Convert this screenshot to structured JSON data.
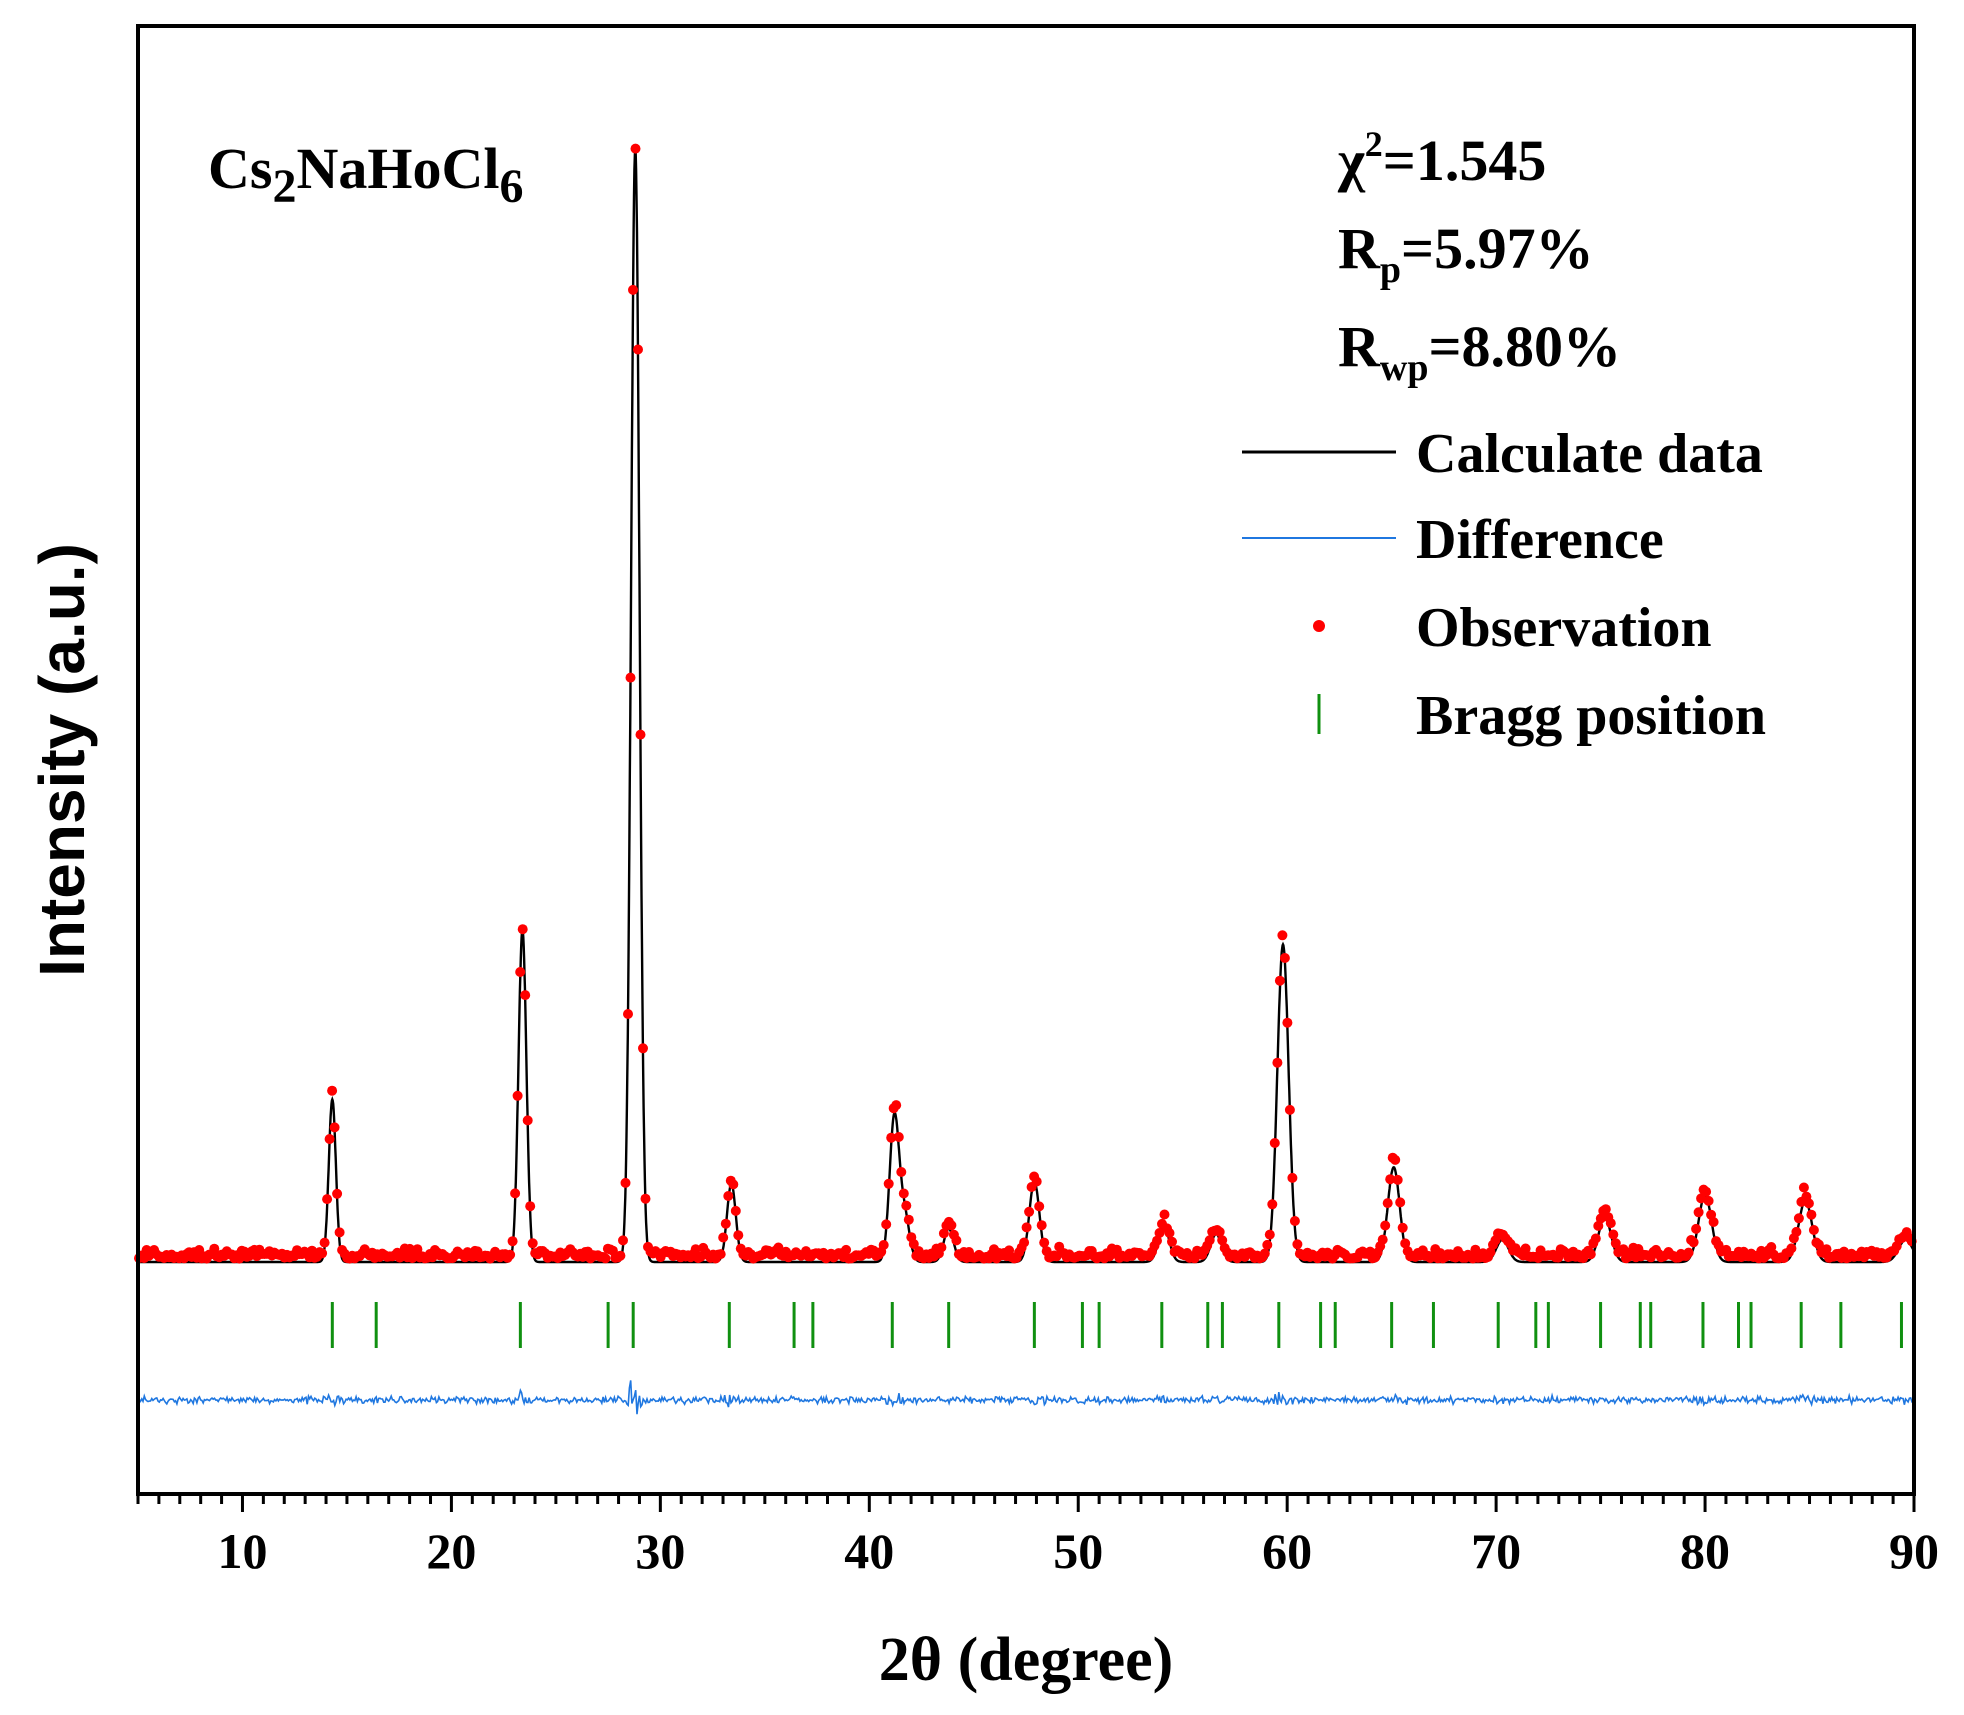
{
  "chart_data": {
    "type": "line",
    "title": "",
    "xlabel": "2θ (degree)",
    "ylabel": "Intensity (a.u.)",
    "xlim": [
      5,
      90
    ],
    "xticks": [
      10,
      20,
      30,
      40,
      50,
      60,
      70,
      80,
      90
    ],
    "x_minor_tick_step": 1,
    "y_ticks_shown": false,
    "grid": false,
    "compound": {
      "base1": "Cs",
      "sub1": "2",
      "base2": "NaHoCl",
      "sub2": "6"
    },
    "statistics": [
      {
        "base": "χ",
        "sup": "2",
        "sub": "",
        "value": "=1.545"
      },
      {
        "base": "R",
        "sup": "",
        "sub": "p",
        "value": "=5.97%"
      },
      {
        "base": "R",
        "sup": "",
        "sub": "wp",
        "value": "=8.80%"
      }
    ],
    "legend": {
      "position": "top-right",
      "entries": [
        {
          "label": "Calculate data",
          "marker": "line",
          "color": "#000000"
        },
        {
          "label": "Difference",
          "marker": "line",
          "color": "#1f77e0"
        },
        {
          "label": "Observation",
          "marker": "dot",
          "color": "#ff0000"
        },
        {
          "label": "Bragg position",
          "marker": "tick",
          "color": "#109010"
        }
      ]
    },
    "peaks": [
      {
        "x": 14.3,
        "height": 0.146
      },
      {
        "x": 23.4,
        "height": 0.298
      },
      {
        "x": 28.8,
        "height": 1.0
      },
      {
        "x": 33.4,
        "height": 0.07
      },
      {
        "x": 41.2,
        "height": 0.13
      },
      {
        "x": 41.7,
        "height": 0.04
      },
      {
        "x": 43.8,
        "height": 0.03
      },
      {
        "x": 47.9,
        "height": 0.072
      },
      {
        "x": 54.1,
        "height": 0.032
      },
      {
        "x": 56.6,
        "height": 0.025
      },
      {
        "x": 59.8,
        "height": 0.285
      },
      {
        "x": 65.1,
        "height": 0.085
      },
      {
        "x": 70.3,
        "height": 0.02
      },
      {
        "x": 75.2,
        "height": 0.04
      },
      {
        "x": 80.0,
        "height": 0.06
      },
      {
        "x": 84.8,
        "height": 0.055
      },
      {
        "x": 89.6,
        "height": 0.02
      }
    ],
    "bragg_positions": [
      14.3,
      16.4,
      23.3,
      27.5,
      28.7,
      33.3,
      36.4,
      37.3,
      41.1,
      43.8,
      47.9,
      50.2,
      51.0,
      54.0,
      56.2,
      56.9,
      59.6,
      61.6,
      62.3,
      65.0,
      67.0,
      70.1,
      71.9,
      72.5,
      75.0,
      76.9,
      77.4,
      79.9,
      81.6,
      82.2,
      84.6,
      86.5,
      89.4
    ],
    "colors": {
      "calculated": "#000000",
      "observed": "#ff0000",
      "difference": "#1f77e0",
      "bragg": "#109010"
    }
  }
}
